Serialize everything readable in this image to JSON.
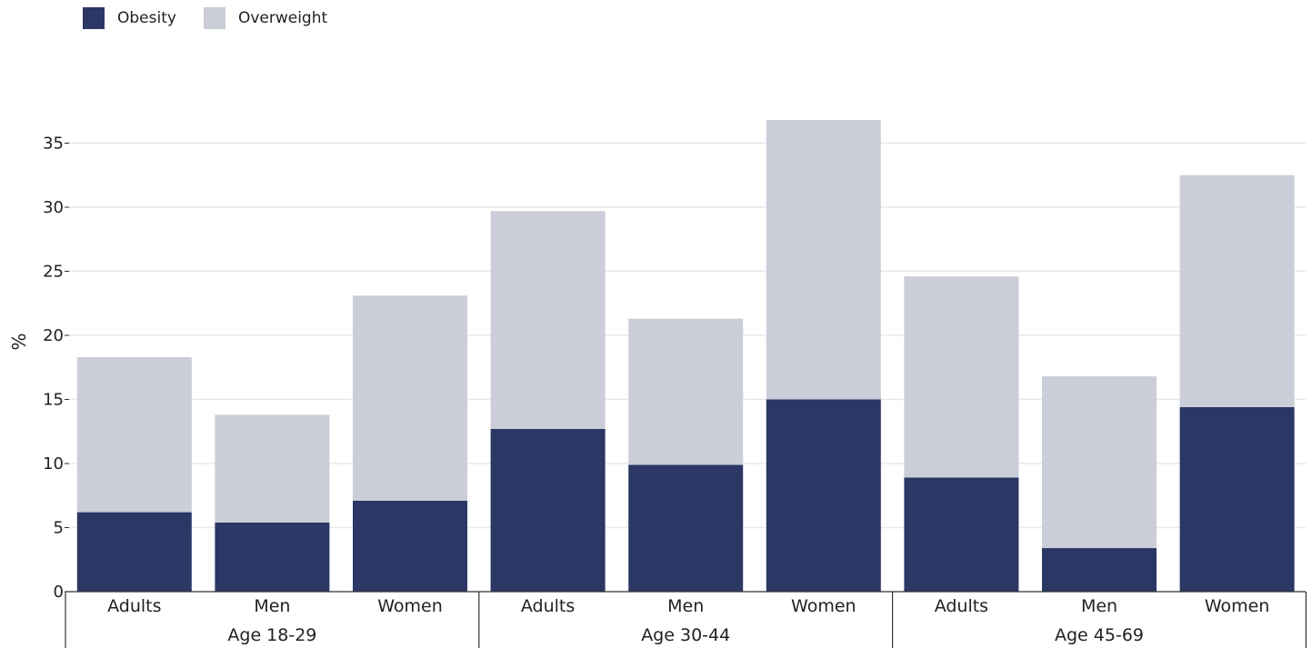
{
  "legend": {
    "obesity_label": "Obesity",
    "overweight_label": "Overweight"
  },
  "colors": {
    "obesity": "#2b3764",
    "overweight": "#cbcdd9",
    "grid": "#e8e8ec",
    "axis": "#333333"
  },
  "chart_data": {
    "type": "bar",
    "stacked": true,
    "ylabel": "%",
    "ylim": [
      0,
      37
    ],
    "yticks": [
      0,
      5,
      10,
      15,
      20,
      25,
      30,
      35
    ],
    "grid": true,
    "legend_position": "top-left",
    "groups": [
      {
        "label": "Age 18-29",
        "categories": [
          "Adults",
          "Men",
          "Women"
        ]
      },
      {
        "label": "Age 30-44",
        "categories": [
          "Adults",
          "Men",
          "Women"
        ]
      },
      {
        "label": "Age 45-69",
        "categories": [
          "Adults",
          "Men",
          "Women"
        ]
      }
    ],
    "series": [
      {
        "name": "Obesity",
        "values": [
          6.2,
          5.4,
          7.1,
          12.7,
          9.9,
          15.0,
          8.9,
          3.4,
          14.4
        ]
      },
      {
        "name": "Overweight",
        "values": [
          12.1,
          8.4,
          16.0,
          17.0,
          11.4,
          21.8,
          15.7,
          13.4,
          18.1
        ]
      }
    ]
  }
}
